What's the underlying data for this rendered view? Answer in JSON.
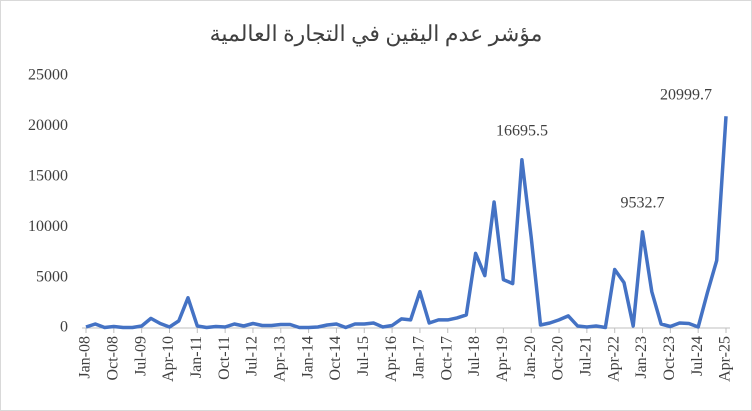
{
  "chart_data": {
    "type": "line",
    "title": "مؤشر عدم اليقين في التجارة العالمية",
    "categories": [
      "Jan-08",
      null,
      null,
      "Oct-08",
      null,
      null,
      "Jul-09",
      null,
      null,
      "Apr-10",
      null,
      null,
      "Jan-11",
      null,
      null,
      "Oct-11",
      null,
      null,
      "Jul-12",
      null,
      null,
      "Apr-13",
      null,
      null,
      "Jan-14",
      null,
      null,
      "Oct-14",
      null,
      null,
      "Jul-15",
      null,
      null,
      "Apr-16",
      null,
      null,
      "Jan-17",
      null,
      null,
      "Oct-17",
      null,
      null,
      "Jul-18",
      null,
      null,
      "Apr-19",
      null,
      null,
      "Jan-20",
      null,
      null,
      "Oct-20",
      null,
      null,
      "Jul-21",
      null,
      null,
      "Apr-22",
      null,
      null,
      "Jan-23",
      null,
      null,
      "Oct-23",
      null,
      null,
      "Jul-24",
      null,
      null,
      "Apr-25"
    ],
    "series": [
      {
        "name": "مؤشر عدم اليقين في التجارة العالمية",
        "color": "#4472c4",
        "values": [
          100,
          400,
          50,
          150,
          50,
          50,
          200,
          950,
          450,
          100,
          700,
          3000,
          200,
          50,
          150,
          100,
          400,
          200,
          450,
          250,
          250,
          350,
          350,
          50,
          50,
          100,
          300,
          400,
          50,
          400,
          400,
          500,
          100,
          250,
          900,
          800,
          3600,
          500,
          800,
          800,
          1000,
          1300,
          7400,
          5200,
          12500,
          4800,
          4400,
          16695.5,
          9000,
          300,
          500,
          800,
          1200,
          200,
          100,
          200,
          50,
          5800,
          4500,
          200,
          9532.7,
          3600,
          400,
          150,
          500,
          450,
          100,
          3500,
          6700,
          20999.7
        ],
        "value_labels": [
          null,
          null,
          null,
          null,
          null,
          null,
          null,
          null,
          null,
          null,
          null,
          null,
          null,
          null,
          null,
          null,
          null,
          null,
          null,
          null,
          null,
          null,
          null,
          null,
          null,
          null,
          null,
          null,
          null,
          null,
          null,
          null,
          null,
          null,
          null,
          null,
          null,
          null,
          null,
          null,
          null,
          null,
          null,
          null,
          null,
          null,
          null,
          "16695.5",
          null,
          null,
          null,
          null,
          null,
          null,
          null,
          null,
          null,
          null,
          null,
          null,
          "9532.7",
          null,
          null,
          null,
          null,
          null,
          null,
          null,
          null,
          "20999.7"
        ]
      }
    ],
    "ylim": [
      0,
      25000
    ],
    "yticks": [
      0,
      5000,
      10000,
      15000,
      20000,
      25000
    ],
    "grid": false
  }
}
